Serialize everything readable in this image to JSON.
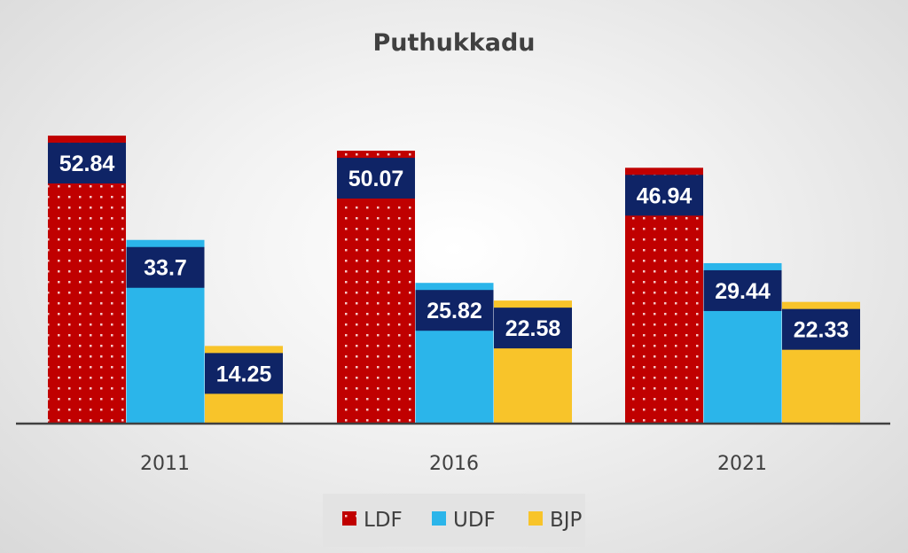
{
  "chart_data": {
    "type": "bar",
    "title": "Puthukkadu",
    "xlabel": "",
    "ylabel": "",
    "categories": [
      "2011",
      "2016",
      "2021"
    ],
    "series": [
      {
        "name": "LDF",
        "values": [
          52.84,
          50.07,
          46.94
        ],
        "color": "#c00000",
        "pattern": "white-dots"
      },
      {
        "name": "UDF",
        "values": [
          33.7,
          25.82,
          29.44
        ],
        "color": "#2bb5ea"
      },
      {
        "name": "BJP",
        "values": [
          14.25,
          22.58,
          22.33
        ],
        "color": "#f8c42a"
      }
    ],
    "data_labels": true,
    "data_label_background": "#0f2466",
    "ylim": [
      0,
      55
    ],
    "grid": false,
    "legend": "bottom"
  }
}
